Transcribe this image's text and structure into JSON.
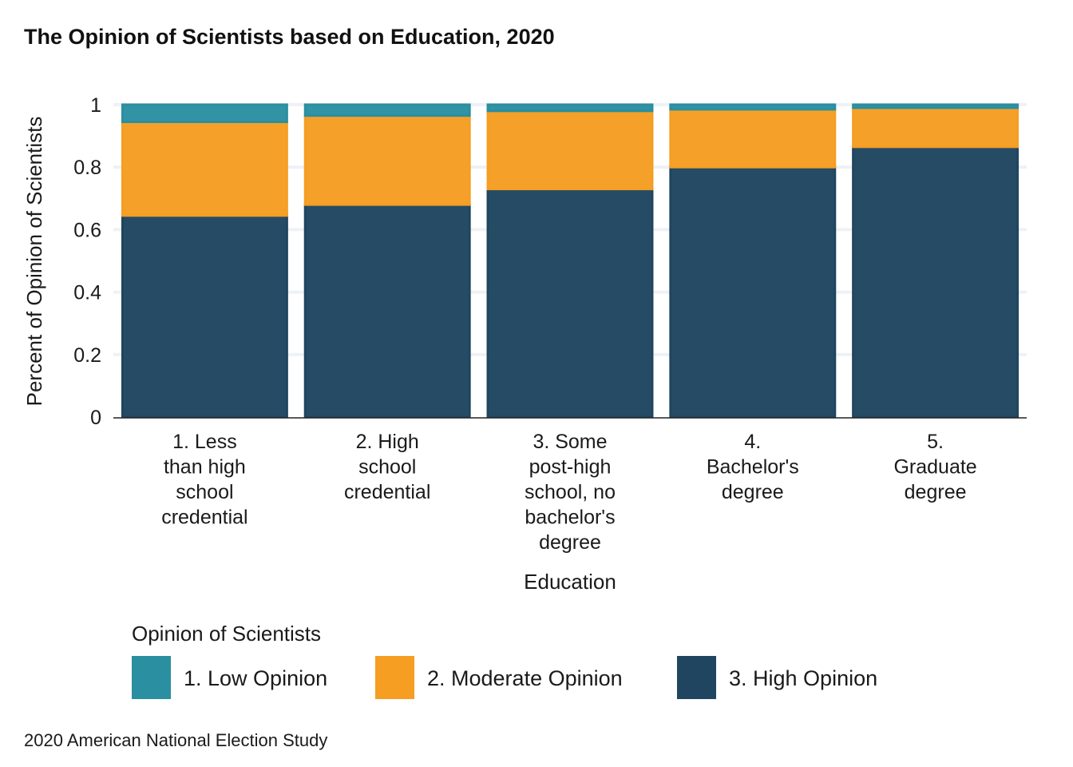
{
  "chart_data": {
    "type": "bar",
    "stacked": true,
    "title": "The Opinion of Scientists based on Education, 2020",
    "xlabel": "Education",
    "ylabel": "Percent of Opinion of Scientists",
    "caption": "2020 American National Election Study",
    "ylim": [
      0,
      1
    ],
    "yticks": [
      "0",
      "0.2",
      "0.4",
      "0.6",
      "0.8",
      "1"
    ],
    "grid": "horizontal",
    "categories": [
      [
        "1. Less",
        "than high",
        "school",
        "credential"
      ],
      [
        "2. High",
        "school",
        "credential"
      ],
      [
        "3. Some",
        "post-high",
        "school, no",
        "bachelor's",
        "degree"
      ],
      [
        "4.",
        "Bachelor's",
        "degree"
      ],
      [
        "5.",
        "Graduate",
        "degree"
      ]
    ],
    "series": [
      {
        "name": "1. Low Opinion",
        "color": "#2a8fa0",
        "values": [
          0.055,
          0.035,
          0.02,
          0.015,
          0.01
        ]
      },
      {
        "name": "2. Moderate Opinion",
        "color": "#f59e22",
        "values": [
          0.3,
          0.285,
          0.25,
          0.185,
          0.125
        ]
      },
      {
        "name": "3. High Opinion",
        "color": "#1f4560",
        "values": [
          0.645,
          0.68,
          0.73,
          0.8,
          0.865
        ]
      }
    ],
    "legend": {
      "title": "Opinion of Scientists",
      "position": "bottom"
    }
  }
}
